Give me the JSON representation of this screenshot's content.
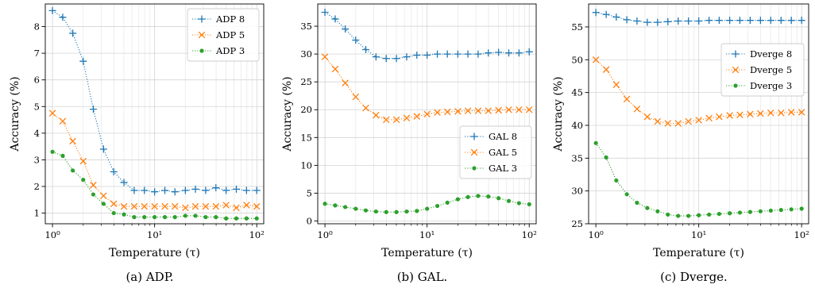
{
  "chart_data": [
    {
      "type": "line",
      "caption": "(a) ADP.",
      "xlabel": "Temperature (τ)",
      "ylabel": "Accuracy (%)",
      "xscale": "log",
      "xlim": [
        0.85,
        117
      ],
      "ylim": [
        0.6,
        8.85
      ],
      "x_ticks": [
        1,
        10,
        100
      ],
      "x_tick_labels": [
        "10⁰",
        "10¹",
        "10²"
      ],
      "y_ticks": [
        1,
        2,
        3,
        4,
        5,
        6,
        7,
        8
      ],
      "grid": true,
      "legend_position": "top-right",
      "x": [
        1.0,
        1.26,
        1.58,
        2.0,
        2.51,
        3.16,
        3.98,
        5.01,
        6.31,
        7.94,
        10.0,
        12.6,
        15.8,
        20.0,
        25.1,
        31.6,
        39.8,
        50.1,
        63.1,
        79.4,
        100.0
      ],
      "series": [
        {
          "name": "ADP 8",
          "marker": "plus",
          "color": "#1f77b4",
          "values": [
            8.6,
            8.35,
            7.75,
            6.7,
            4.9,
            3.4,
            2.55,
            2.15,
            1.85,
            1.85,
            1.8,
            1.85,
            1.8,
            1.85,
            1.9,
            1.85,
            1.95,
            1.85,
            1.9,
            1.85,
            1.85
          ]
        },
        {
          "name": "ADP 5",
          "marker": "x",
          "color": "#ff7f0e",
          "values": [
            4.75,
            4.45,
            3.7,
            2.95,
            2.05,
            1.65,
            1.35,
            1.25,
            1.25,
            1.25,
            1.25,
            1.25,
            1.25,
            1.2,
            1.25,
            1.25,
            1.25,
            1.3,
            1.2,
            1.3,
            1.25
          ]
        },
        {
          "name": "ADP 3",
          "marker": "dot",
          "color": "#2ca02c",
          "values": [
            3.3,
            3.15,
            2.6,
            2.25,
            1.7,
            1.35,
            1.0,
            0.95,
            0.85,
            0.85,
            0.85,
            0.85,
            0.85,
            0.9,
            0.9,
            0.85,
            0.85,
            0.8,
            0.8,
            0.8,
            0.8
          ]
        }
      ]
    },
    {
      "type": "line",
      "caption": "(b) GAL.",
      "xlabel": "Temperature (τ)",
      "ylabel": "Accuracy (%)",
      "xscale": "log",
      "xlim": [
        0.85,
        117
      ],
      "ylim": [
        -0.5,
        39
      ],
      "x_ticks": [
        1,
        10,
        100
      ],
      "x_tick_labels": [
        "10⁰",
        "10¹",
        "10²"
      ],
      "y_ticks": [
        0,
        5,
        10,
        15,
        20,
        25,
        30,
        35
      ],
      "grid": true,
      "legend_position": "center-right",
      "x": [
        1.0,
        1.26,
        1.58,
        2.0,
        2.51,
        3.16,
        3.98,
        5.01,
        6.31,
        7.94,
        10.0,
        12.6,
        15.8,
        20.0,
        25.1,
        31.6,
        39.8,
        50.1,
        63.1,
        79.4,
        100.0
      ],
      "series": [
        {
          "name": "GAL 8",
          "marker": "plus",
          "color": "#1f77b4",
          "values": [
            37.5,
            36.3,
            34.5,
            32.5,
            30.8,
            29.5,
            29.2,
            29.2,
            29.5,
            29.8,
            29.8,
            30.0,
            30.0,
            30.0,
            30.0,
            30.0,
            30.2,
            30.3,
            30.2,
            30.2,
            30.4
          ]
        },
        {
          "name": "GAL 5",
          "marker": "x",
          "color": "#ff7f0e",
          "values": [
            29.5,
            27.3,
            24.8,
            22.3,
            20.3,
            19.0,
            18.2,
            18.2,
            18.5,
            18.8,
            19.2,
            19.5,
            19.6,
            19.7,
            19.8,
            19.8,
            19.8,
            19.9,
            20.0,
            20.0,
            20.0
          ]
        },
        {
          "name": "GAL 3",
          "marker": "dot",
          "color": "#2ca02c",
          "values": [
            3.1,
            2.8,
            2.5,
            2.2,
            1.9,
            1.7,
            1.6,
            1.6,
            1.7,
            1.8,
            2.2,
            2.7,
            3.3,
            3.9,
            4.3,
            4.5,
            4.4,
            4.1,
            3.6,
            3.2,
            3.0
          ]
        }
      ]
    },
    {
      "type": "line",
      "caption": "(c) Dverge.",
      "xlabel": "Temperature (τ)",
      "ylabel": "Accuracy (%)",
      "xscale": "log",
      "xlim": [
        0.85,
        117
      ],
      "ylim": [
        25,
        58.5
      ],
      "x_ticks": [
        1,
        10,
        100
      ],
      "x_tick_labels": [
        "10⁰",
        "10¹",
        "10²"
      ],
      "y_ticks": [
        25,
        30,
        35,
        40,
        45,
        50,
        55
      ],
      "grid": true,
      "legend_position": "right",
      "x": [
        1.0,
        1.26,
        1.58,
        2.0,
        2.51,
        3.16,
        3.98,
        5.01,
        6.31,
        7.94,
        10.0,
        12.6,
        15.8,
        20.0,
        25.1,
        31.6,
        39.8,
        50.1,
        63.1,
        79.4,
        100.0
      ],
      "series": [
        {
          "name": "Dverge 8",
          "marker": "plus",
          "color": "#1f77b4",
          "values": [
            57.2,
            56.9,
            56.5,
            56.1,
            55.9,
            55.7,
            55.7,
            55.8,
            55.9,
            55.9,
            55.9,
            56.0,
            56.0,
            56.0,
            56.0,
            56.0,
            56.0,
            56.0,
            56.0,
            56.0,
            56.0
          ]
        },
        {
          "name": "Dverge 5",
          "marker": "x",
          "color": "#ff7f0e",
          "values": [
            50.0,
            48.5,
            46.2,
            44.0,
            42.5,
            41.3,
            40.6,
            40.3,
            40.3,
            40.6,
            40.8,
            41.1,
            41.3,
            41.5,
            41.6,
            41.7,
            41.8,
            41.9,
            41.9,
            42.0,
            42.0
          ]
        },
        {
          "name": "Dverge 3",
          "marker": "dot",
          "color": "#2ca02c",
          "values": [
            37.3,
            35.1,
            31.6,
            29.5,
            28.2,
            27.4,
            26.9,
            26.4,
            26.2,
            26.2,
            26.3,
            26.4,
            26.5,
            26.6,
            26.7,
            26.8,
            26.9,
            27.0,
            27.1,
            27.2,
            27.3
          ]
        }
      ]
    }
  ]
}
